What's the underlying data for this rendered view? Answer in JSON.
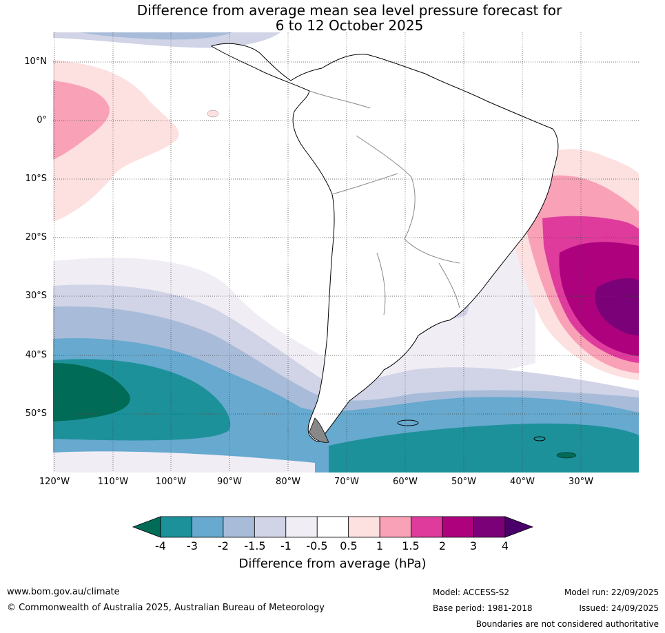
{
  "title": {
    "line1": "Difference from average mean sea level pressure forecast for",
    "line2": "6 to 12 October 2025"
  },
  "axes": {
    "lat_labels": [
      "10°N",
      "0°",
      "10°S",
      "20°S",
      "30°S",
      "40°S",
      "50°S"
    ],
    "lon_labels": [
      "120°W",
      "110°W",
      "100°W",
      "90°W",
      "80°W",
      "70°W",
      "60°W",
      "50°W",
      "40°W",
      "30°W"
    ]
  },
  "colorbar": {
    "title": "Difference from average (hPa)",
    "ticks": [
      "-4",
      "-3",
      "-2",
      "-1.5",
      "-1",
      "-0.5",
      "0.5",
      "1",
      "1.5",
      "2",
      "3",
      "4"
    ],
    "colors": {
      "below_-4": "#006b56",
      "-4_-3": "#1d919a",
      "-3_-2": "#67a9cf",
      "-2_-1.5": "#a8bcd9",
      "-1.5_-1": "#d1d3e6",
      "-1_-0.5": "#f1edf5",
      "-0.5_0.5": "#ffffff",
      "0.5_1": "#fde0e0",
      "1_1.5": "#f9a1b7",
      "1.5_2": "#df3b9d",
      "2_3": "#ae017e",
      "3_4": "#7a0177",
      "above_4": "#49006a"
    }
  },
  "footer": {
    "website": "www.bom.gov.au/climate",
    "copyright": "© Commonwealth of Australia 2025, Australian Bureau of Meteorology",
    "model": "Model: ACCESS-S2",
    "base_period": "Base period: 1981-2018",
    "model_run": "Model run: 22/09/2025",
    "issued": "Issued: 24/09/2025",
    "disclaimer": "Boundaries are not considered authoritative"
  }
}
